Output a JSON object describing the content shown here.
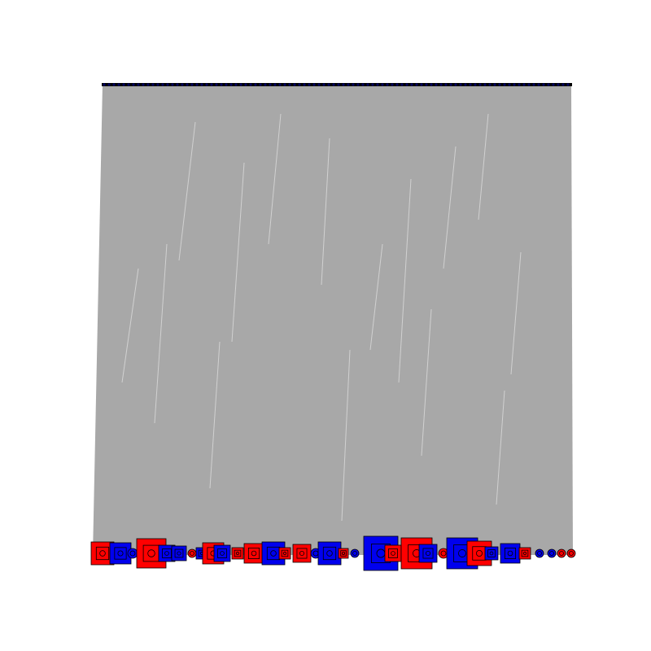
{
  "diagram": {
    "kind": "bipartite-edge-plot",
    "colors": {
      "background": "#ffffff",
      "edge": "#a8a8a8",
      "edge_highlight": "#f2f2f2",
      "top_node_bar": "#000000",
      "top_node_dots": "#000060",
      "node_red": "#ff0000",
      "node_blue": "#0000ee",
      "node_outline": "#000000"
    },
    "top_nodes": {
      "shape": "dot",
      "color": "navy"
    },
    "bottom_nodes": {
      "shape": "nested-squares-and-circles",
      "colors_alternate": [
        "red",
        "blue"
      ]
    }
  }
}
